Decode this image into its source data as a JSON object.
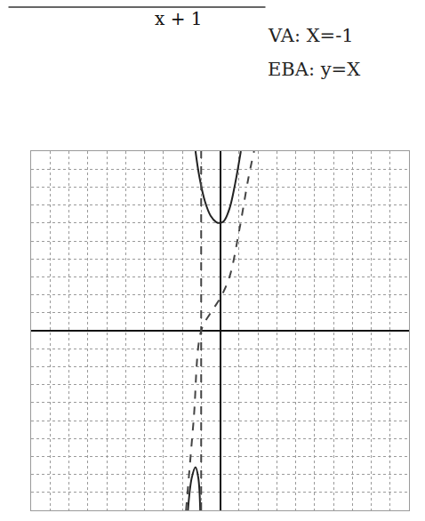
{
  "chart_data": {
    "type": "line",
    "title": "x + 1",
    "annotations": [
      "VA: X=-1",
      "EBA: y=X"
    ],
    "xlim": [
      -10,
      10
    ],
    "ylim": [
      -10,
      10
    ],
    "xticks": [
      -10,
      -9,
      -8,
      -7,
      -6,
      -5,
      -4,
      -3,
      -2,
      -1,
      0,
      1,
      2,
      3,
      4,
      5,
      6,
      7,
      8,
      9,
      10
    ],
    "yticks": [
      -10,
      -9,
      -8,
      -7,
      -6,
      -5,
      -4,
      -3,
      -2,
      -1,
      0,
      1,
      2,
      3,
      4,
      5,
      6,
      7,
      8,
      9,
      10
    ],
    "grid": true,
    "tick_labels": false,
    "series": [
      {
        "x": [
          -1.3,
          -1.1,
          -0.8,
          -0.5,
          -0.2,
          0,
          0.2,
          0.5,
          0.8,
          1.1
        ],
        "values": [
          10,
          8.6,
          7.2,
          6.4,
          6.05,
          6,
          6.1,
          6.8,
          8.2,
          10
        ],
        "color": "#222222",
        "line_style": "solid"
      },
      {
        "x": [
          -1.7,
          -1.5,
          -1.3,
          -1.15,
          -1.05
        ],
        "values": [
          -10,
          -8.2,
          -7.6,
          -8.2,
          -10
        ],
        "color": "#222222",
        "line_style": "solid"
      },
      {
        "x": [
          -1,
          -1
        ],
        "values": [
          -10,
          10
        ],
        "color": "#444444",
        "line_style": "dash"
      },
      {
        "x": [
          -1.8,
          -1.4,
          -1,
          -0.5,
          0,
          0.5,
          1,
          1.5,
          1.8
        ],
        "values": [
          -10,
          -5,
          0,
          1,
          1.8,
          3,
          5.5,
          8.5,
          10
        ],
        "color": "#444444",
        "line_style": "dash"
      }
    ]
  }
}
